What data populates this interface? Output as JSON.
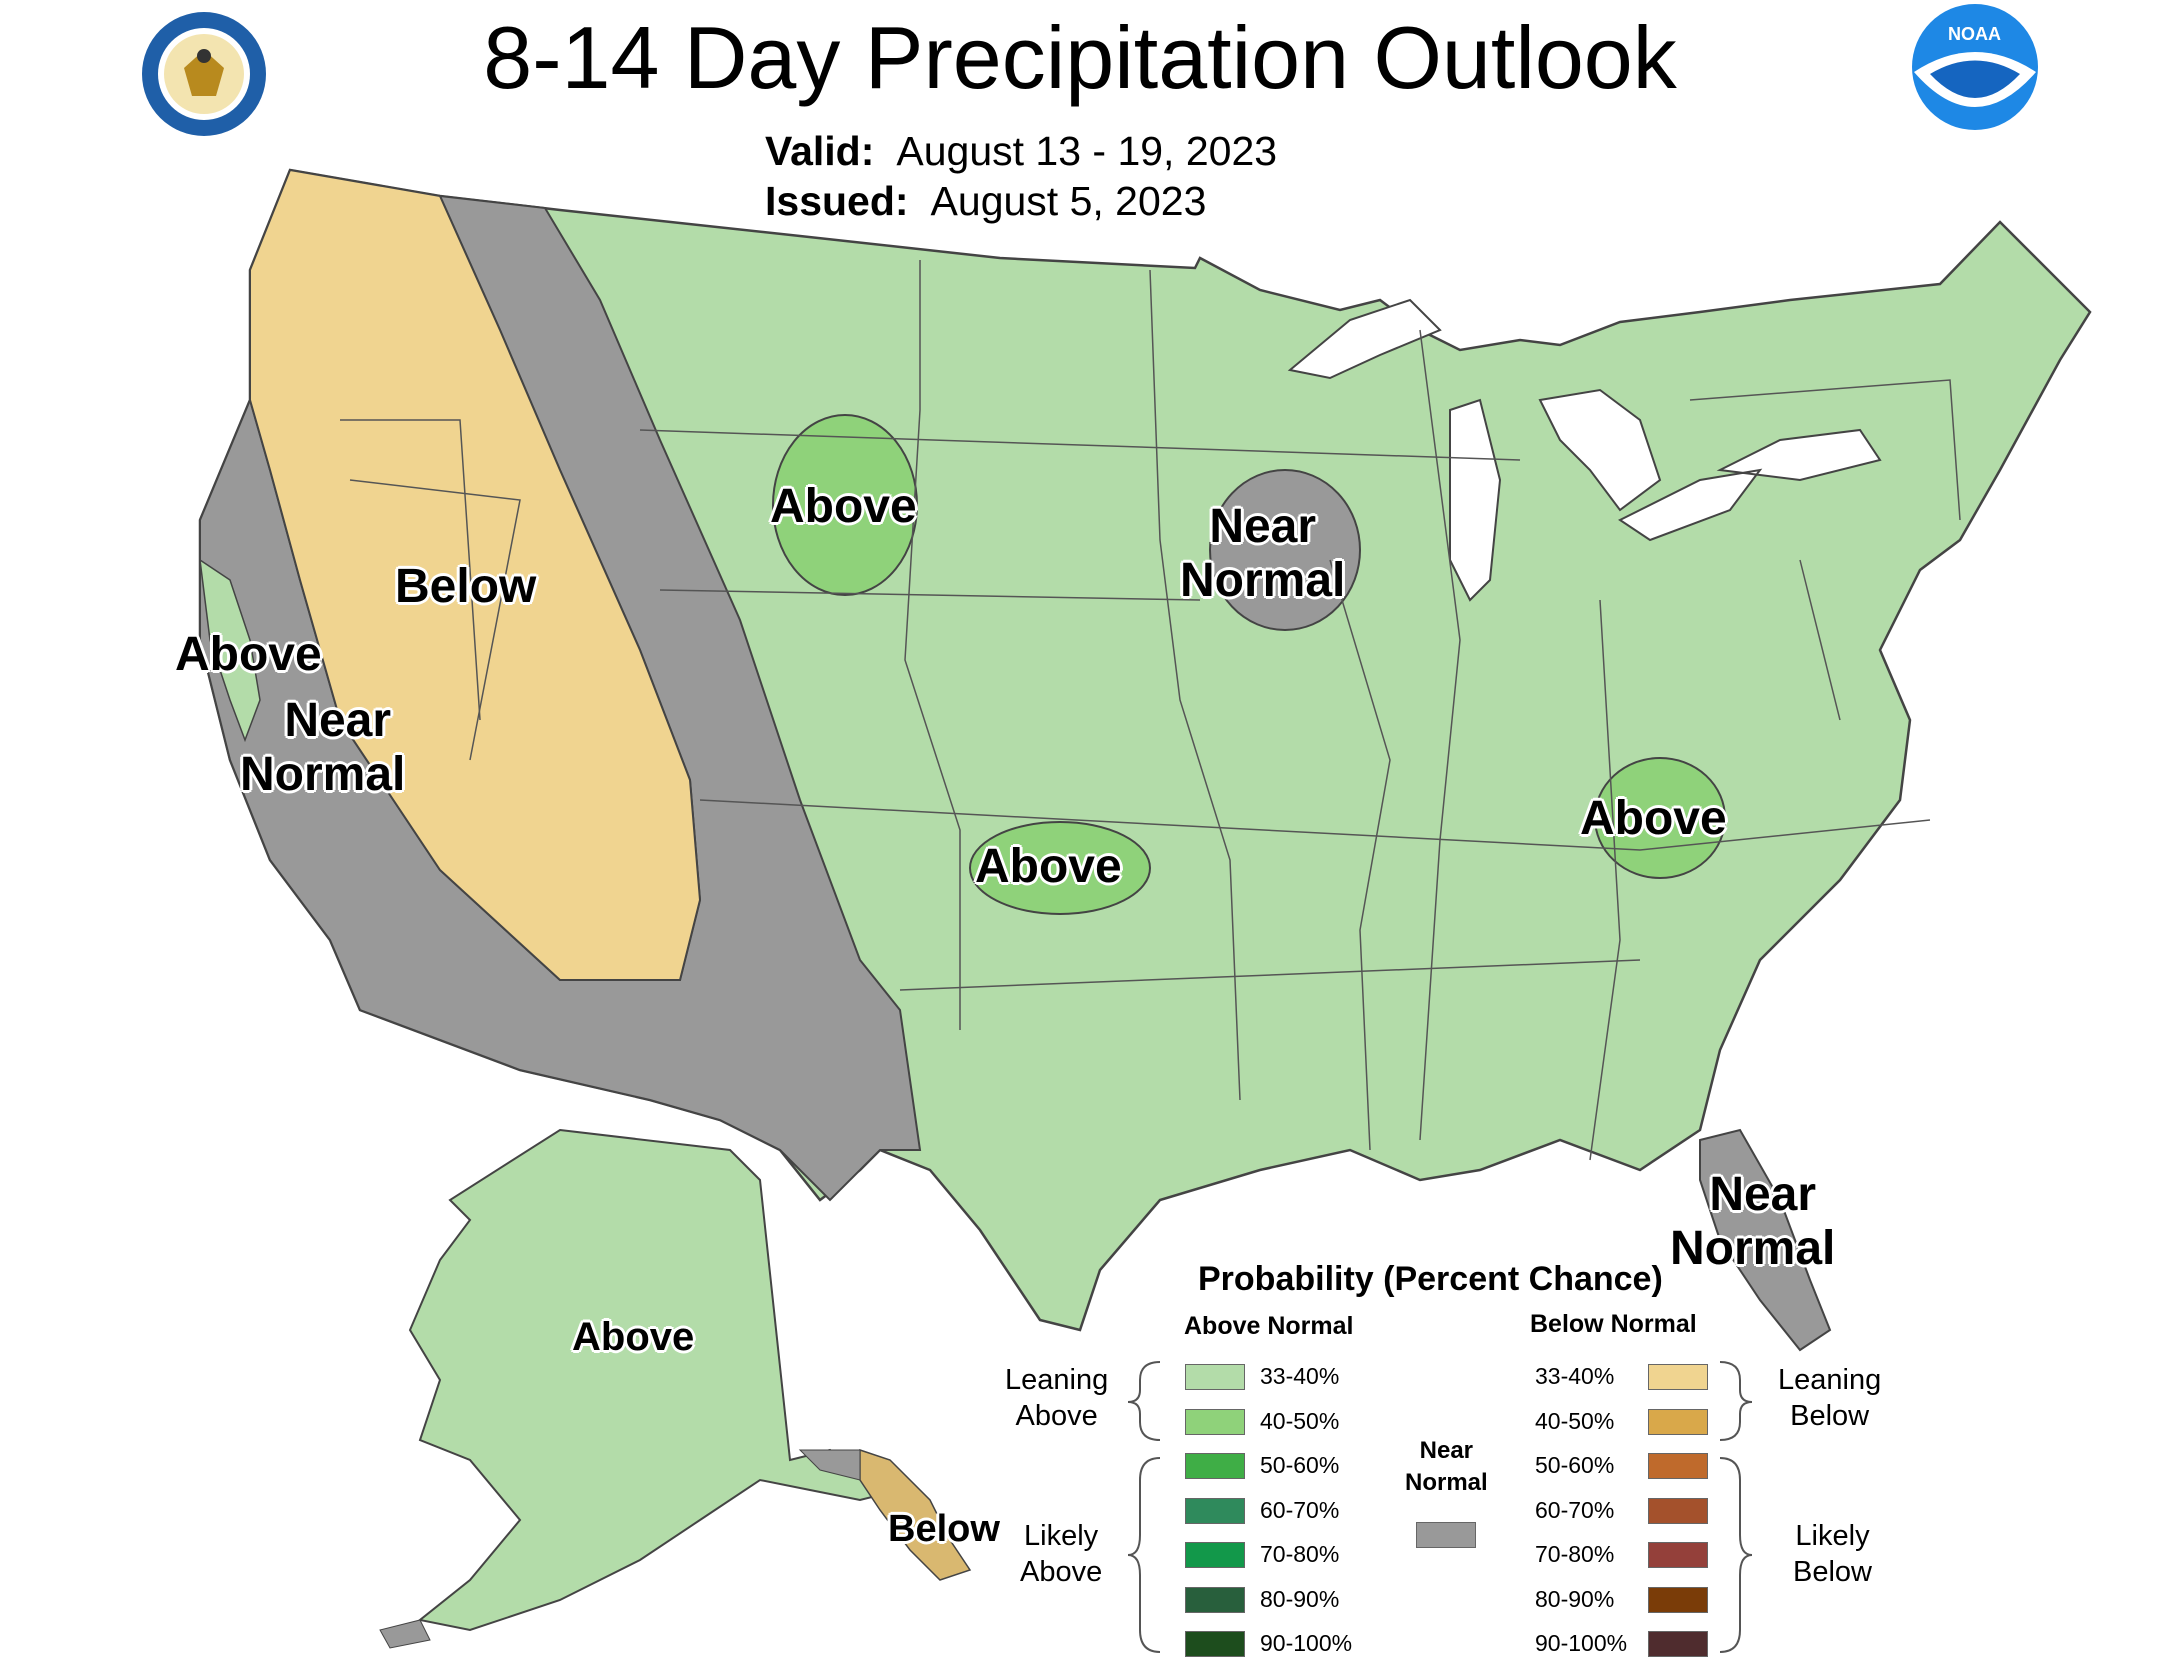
{
  "header": {
    "title": "8-14 Day Precipitation Outlook",
    "valid_label": "Valid:",
    "valid_value": "August 13 - 19, 2023",
    "issued_label": "Issued:",
    "issued_value": "August 5, 2023"
  },
  "logos": {
    "left": "department-of-commerce-seal",
    "right": "noaa-logo",
    "noaa_text": "NOAA"
  },
  "map": {
    "regions": [
      {
        "id": "pacific-nw-below",
        "label": "Below",
        "category": "Leaning Below 33-40%"
      },
      {
        "id": "west-near-normal",
        "label": "Near Normal",
        "category": "Near Normal"
      },
      {
        "id": "coastal-ca-above",
        "label": "Above",
        "category": "Leaning Above 33-40%"
      },
      {
        "id": "northern-plains-above",
        "label": "Above",
        "category": "Leaning Above 40-50%"
      },
      {
        "id": "upper-midwest-near-normal",
        "label": "Near Normal",
        "category": "Near Normal"
      },
      {
        "id": "southern-plains-above",
        "label": "Above",
        "category": "Leaning Above 40-50%"
      },
      {
        "id": "appalachia-above",
        "label": "Above",
        "category": "Leaning Above 40-50%"
      },
      {
        "id": "florida-near-normal",
        "label": "Near Normal",
        "category": "Near Normal"
      },
      {
        "id": "alaska-above",
        "label": "Above",
        "category": "Leaning Above 33-40%"
      },
      {
        "id": "se-alaska-below",
        "label": "Below",
        "category": "Leaning Below 33-40%"
      }
    ],
    "label_near_line1": "Near",
    "label_near_line2": "Normal"
  },
  "legend": {
    "title": "Probability (Percent Chance)",
    "above_header": "Above Normal",
    "below_header": "Below Normal",
    "near_line1": "Near",
    "near_line2": "Normal",
    "near_color": "#999999",
    "leaning_above_line1": "Leaning",
    "leaning_above_line2": "Above",
    "likely_above_line1": "Likely",
    "likely_above_line2": "Above",
    "leaning_below_line1": "Leaning",
    "leaning_below_line2": "Below",
    "likely_below_line1": "Likely",
    "likely_below_line2": "Below",
    "above": [
      {
        "range": "33-40%",
        "color": "#b3dca9"
      },
      {
        "range": "40-50%",
        "color": "#8fd27a"
      },
      {
        "range": "50-60%",
        "color": "#3fae46"
      },
      {
        "range": "60-70%",
        "color": "#2f8a5c"
      },
      {
        "range": "70-80%",
        "color": "#12984a"
      },
      {
        "range": "80-90%",
        "color": "#285f3c"
      },
      {
        "range": "90-100%",
        "color": "#1d4d1d"
      }
    ],
    "below": [
      {
        "range": "33-40%",
        "color": "#f0d490"
      },
      {
        "range": "40-50%",
        "color": "#d9a84a"
      },
      {
        "range": "50-60%",
        "color": "#bf6a2c"
      },
      {
        "range": "60-70%",
        "color": "#a4512c"
      },
      {
        "range": "70-80%",
        "color": "#94403a"
      },
      {
        "range": "80-90%",
        "color": "#7a3c08"
      },
      {
        "range": "90-100%",
        "color": "#4f2c2e"
      }
    ]
  },
  "colors": {
    "leaning_above": "#b3dca9",
    "above_40_50": "#8fd27a",
    "leaning_below": "#f0d490",
    "near_normal": "#999999",
    "state_border": "#555555"
  }
}
